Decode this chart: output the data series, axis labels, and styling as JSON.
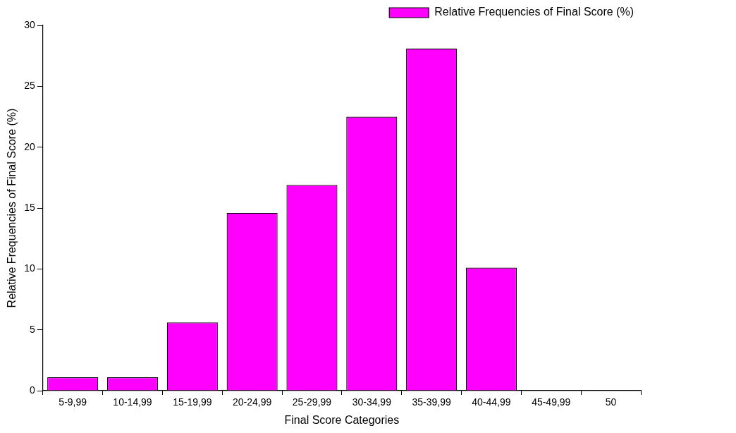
{
  "chart_data": {
    "type": "bar",
    "xlabel": "Final Score Categories",
    "ylabel": "Relative Frequencies of Final Score (%)",
    "categories": [
      "5-9,99",
      "10-14,99",
      "15-19,99",
      "20-24,99",
      "25-29,99",
      "30-34,99",
      "35-39,99",
      "40-44,99",
      "45-49,99",
      "50"
    ],
    "series": [
      {
        "name": "Relative Frequencies of Final Score (%)",
        "color": "#ff00ff",
        "values": [
          1.1,
          1.1,
          5.6,
          14.6,
          16.9,
          22.5,
          28.1,
          10.1,
          0,
          0
        ]
      }
    ],
    "ylim": [
      0,
      30
    ],
    "yticks": [
      0,
      5,
      10,
      15,
      20,
      25,
      30
    ],
    "grid": false,
    "legend": "top right"
  }
}
